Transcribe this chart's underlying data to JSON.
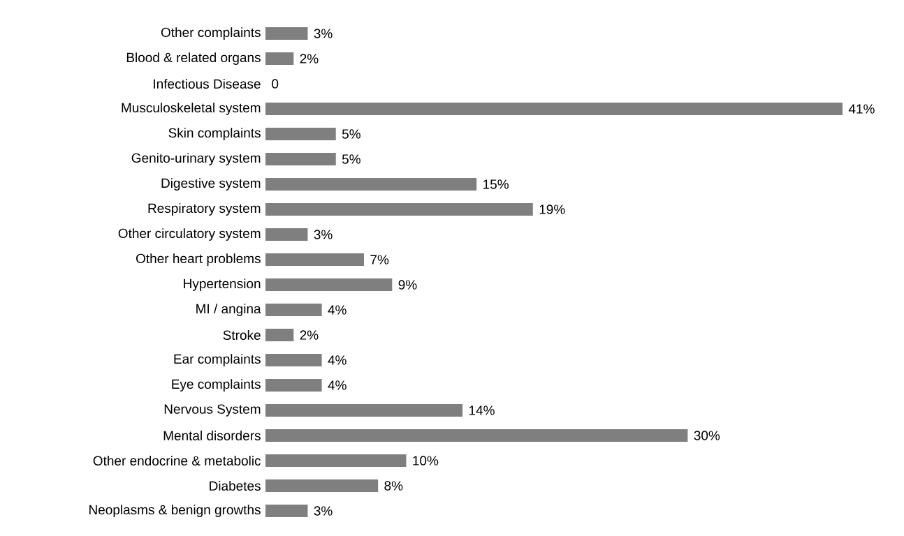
{
  "chart_data": {
    "type": "bar",
    "orientation": "horizontal",
    "categories": [
      "Other complaints",
      "Blood & related organs",
      "Infectious Disease",
      "Musculoskeletal system",
      "Skin complaints",
      "Genito-urinary system",
      "Digestive system",
      "Respiratory system",
      "Other circulatory system",
      "Other heart problems",
      "Hypertension",
      "MI / angina",
      "Stroke",
      "Ear complaints",
      "Eye complaints",
      "Nervous System",
      "Mental disorders",
      "Other endocrine & metabolic",
      "Diabetes",
      "Neoplasms & benign growths"
    ],
    "values": [
      3,
      2,
      0,
      41,
      5,
      5,
      15,
      19,
      3,
      7,
      9,
      4,
      2,
      4,
      4,
      14,
      30,
      10,
      8,
      3
    ],
    "value_labels": [
      "3%",
      "2%",
      "0",
      "41%",
      "5%",
      "5%",
      "15%",
      "19%",
      "3%",
      "7%",
      "9%",
      "4%",
      "2%",
      "4%",
      "4%",
      "14%",
      "30%",
      "10%",
      "8%",
      "3%"
    ],
    "color": "#7f7f7f"
  }
}
